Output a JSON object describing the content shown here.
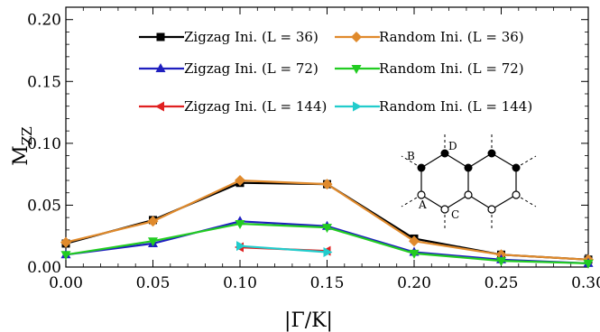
{
  "chart_data": {
    "type": "line",
    "xlabel": "|Γ/K|",
    "ylabel_main": "M",
    "ylabel_sub": "ZZ",
    "xlim": [
      0.0,
      0.3
    ],
    "ylim": [
      0.0,
      0.21
    ],
    "x_ticks": [
      "0.00",
      "0.05",
      "0.10",
      "0.15",
      "0.20",
      "0.25",
      "0.30"
    ],
    "y_ticks": [
      "0.00",
      "0.05",
      "0.10",
      "0.15",
      "0.20"
    ],
    "legend_placement": "top",
    "series": [
      {
        "name": "Zigzag Ini. (L = 36)",
        "color": "#000000",
        "marker": "square",
        "x": [
          0.0,
          0.05,
          0.1,
          0.15,
          0.2,
          0.25,
          0.3
        ],
        "y": [
          0.019,
          0.038,
          0.068,
          0.067,
          0.023,
          0.01,
          0.006
        ]
      },
      {
        "name": "Random Ini. (L = 36)",
        "color": "#e08a2c",
        "marker": "diamond",
        "x": [
          0.0,
          0.05,
          0.1,
          0.15,
          0.2,
          0.25,
          0.3
        ],
        "y": [
          0.02,
          0.037,
          0.07,
          0.067,
          0.021,
          0.01,
          0.006
        ]
      },
      {
        "name": "Zigzag Ini. (L = 72)",
        "color": "#1f1fbf",
        "marker": "triangle-up",
        "x": [
          0.0,
          0.05,
          0.1,
          0.15,
          0.2,
          0.25,
          0.3
        ],
        "y": [
          0.01,
          0.019,
          0.037,
          0.033,
          0.012,
          0.006,
          0.003
        ]
      },
      {
        "name": "Random Ini. (L = 72)",
        "color": "#22cc22",
        "marker": "triangle-down",
        "x": [
          0.0,
          0.05,
          0.1,
          0.15,
          0.2,
          0.25,
          0.3
        ],
        "y": [
          0.01,
          0.021,
          0.035,
          0.032,
          0.011,
          0.005,
          0.003
        ]
      },
      {
        "name": "Zigzag Ini. (L = 144)",
        "color": "#e02020",
        "marker": "triangle-left",
        "x": [
          0.1,
          0.15
        ],
        "y": [
          0.016,
          0.013
        ]
      },
      {
        "name": "Random Ini. (L = 144)",
        "color": "#22cccc",
        "marker": "triangle-right",
        "x": [
          0.1,
          0.15
        ],
        "y": [
          0.017,
          0.012
        ]
      }
    ],
    "inset": {
      "description": "honeycomb lattice",
      "labels": [
        "A",
        "B",
        "C",
        "D"
      ]
    }
  }
}
